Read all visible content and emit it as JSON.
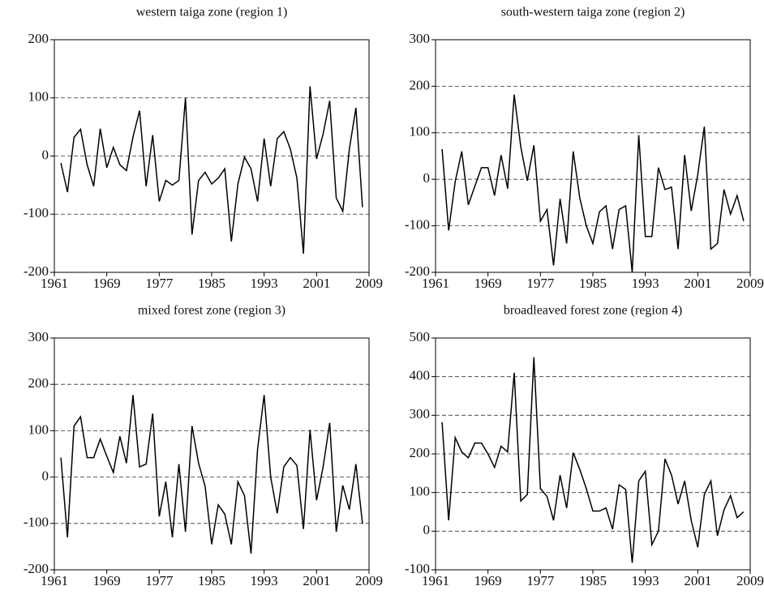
{
  "chart_data": [
    {
      "type": "line",
      "title": "western taiga zone (region 1)",
      "x": [
        1962,
        1963,
        1964,
        1965,
        1966,
        1967,
        1968,
        1969,
        1970,
        1971,
        1972,
        1973,
        1974,
        1975,
        1976,
        1977,
        1978,
        1979,
        1980,
        1981,
        1982,
        1983,
        1984,
        1985,
        1986,
        1987,
        1988,
        1989,
        1990,
        1991,
        1992,
        1993,
        1994,
        1995,
        1996,
        1997,
        1998,
        1999,
        2000,
        2001,
        2002,
        2003,
        2004,
        2005,
        2006,
        2007,
        2008
      ],
      "values": [
        -12,
        -62,
        32,
        46,
        -15,
        -52,
        47,
        -20,
        15,
        -15,
        -25,
        33,
        78,
        -52,
        36,
        -78,
        -42,
        -50,
        -42,
        100,
        -135,
        -42,
        -28,
        -48,
        -38,
        -22,
        -147,
        -48,
        -2,
        -22,
        -78,
        30,
        -52,
        30,
        42,
        12,
        -38,
        -168,
        120,
        -5,
        38,
        95,
        -72,
        -95,
        12,
        83,
        -88
      ],
      "color": "#000000",
      "xlim": [
        1961,
        2009
      ],
      "xticks": [
        1961,
        1969,
        1977,
        1985,
        1993,
        2001,
        2009
      ],
      "ylim": [
        -200,
        200
      ],
      "yticks": [
        -200,
        -100,
        0,
        100,
        200
      ],
      "grid": true
    },
    {
      "type": "line",
      "title": "south-western taiga zone (region 2)",
      "x": [
        1962,
        1963,
        1964,
        1965,
        1966,
        1967,
        1968,
        1969,
        1970,
        1971,
        1972,
        1973,
        1974,
        1975,
        1976,
        1977,
        1978,
        1979,
        1980,
        1981,
        1982,
        1983,
        1984,
        1985,
        1986,
        1987,
        1988,
        1989,
        1990,
        1991,
        1992,
        1993,
        1994,
        1995,
        1996,
        1997,
        1998,
        1999,
        2000,
        2001,
        2002,
        2003,
        2004,
        2005,
        2006,
        2007,
        2008
      ],
      "values": [
        65,
        -110,
        -5,
        60,
        -55,
        -15,
        25,
        25,
        -35,
        52,
        -20,
        182,
        70,
        -3,
        73,
        -90,
        -65,
        -185,
        -42,
        -138,
        60,
        -40,
        -100,
        -138,
        -70,
        -57,
        -150,
        -65,
        -57,
        -200,
        95,
        -123,
        -123,
        25,
        -22,
        -17,
        -150,
        52,
        -68,
        10,
        113,
        -150,
        -138,
        -22,
        -75,
        -35,
        -90
      ],
      "color": "#000000",
      "xlim": [
        1961,
        2009
      ],
      "xticks": [
        1961,
        1969,
        1977,
        1985,
        1993,
        2001,
        2009
      ],
      "ylim": [
        -200,
        300
      ],
      "yticks": [
        -200,
        -100,
        0,
        100,
        200,
        300
      ],
      "grid": true
    },
    {
      "type": "line",
      "title": "mixed forest zone (region 3)",
      "x": [
        1962,
        1963,
        1964,
        1965,
        1966,
        1967,
        1968,
        1969,
        1970,
        1971,
        1972,
        1973,
        1974,
        1975,
        1976,
        1977,
        1978,
        1979,
        1980,
        1981,
        1982,
        1983,
        1984,
        1985,
        1986,
        1987,
        1988,
        1989,
        1990,
        1991,
        1992,
        1993,
        1994,
        1995,
        1996,
        1997,
        1998,
        1999,
        2000,
        2001,
        2002,
        2003,
        2004,
        2005,
        2006,
        2007,
        2008
      ],
      "values": [
        42,
        -130,
        110,
        130,
        42,
        42,
        82,
        45,
        10,
        88,
        30,
        177,
        22,
        28,
        137,
        -85,
        -10,
        -130,
        28,
        -118,
        110,
        30,
        -20,
        -145,
        -60,
        -80,
        -145,
        -10,
        -40,
        -165,
        60,
        177,
        0,
        -78,
        22,
        42,
        25,
        -112,
        102,
        -50,
        22,
        117,
        -118,
        -18,
        -70,
        28,
        -100
      ],
      "color": "#000000",
      "xlim": [
        1961,
        2009
      ],
      "xticks": [
        1961,
        1969,
        1977,
        1985,
        1993,
        2001,
        2009
      ],
      "ylim": [
        -200,
        300
      ],
      "yticks": [
        -200,
        -100,
        0,
        100,
        200,
        300
      ],
      "grid": true
    },
    {
      "type": "line",
      "title": "broadleaved forest zone  (region 4)",
      "x": [
        1962,
        1963,
        1964,
        1965,
        1966,
        1967,
        1968,
        1969,
        1970,
        1971,
        1972,
        1973,
        1974,
        1975,
        1976,
        1977,
        1978,
        1979,
        1980,
        1981,
        1982,
        1983,
        1984,
        1985,
        1986,
        1987,
        1988,
        1989,
        1990,
        1991,
        1992,
        1993,
        1994,
        1995,
        1996,
        1997,
        1998,
        1999,
        2000,
        2001,
        2002,
        2003,
        2004,
        2005,
        2006,
        2007,
        2008
      ],
      "values": [
        282,
        28,
        242,
        205,
        190,
        228,
        228,
        200,
        165,
        220,
        205,
        410,
        78,
        95,
        450,
        110,
        90,
        28,
        145,
        60,
        203,
        160,
        110,
        52,
        52,
        60,
        5,
        120,
        108,
        -82,
        130,
        155,
        -35,
        0,
        187,
        145,
        70,
        130,
        28,
        -42,
        95,
        130,
        -12,
        55,
        92,
        35,
        50
      ],
      "color": "#000000",
      "xlim": [
        1961,
        2009
      ],
      "xticks": [
        1961,
        1969,
        1977,
        1985,
        1993,
        2001,
        2009
      ],
      "ylim": [
        -100,
        500
      ],
      "yticks": [
        -100,
        0,
        100,
        200,
        300,
        400,
        500
      ],
      "grid": true
    }
  ]
}
